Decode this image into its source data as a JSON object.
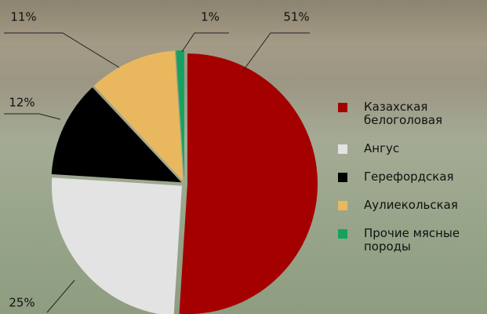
{
  "chart_data": {
    "type": "pie",
    "categories": [
      "Казахская белоголовая",
      "Ангус",
      "Герефордская",
      "Аулиекольская",
      "Прочие мясные породы"
    ],
    "values": [
      51,
      25,
      12,
      11,
      1
    ],
    "value_labels": [
      "51%",
      "25%",
      "12%",
      "11%",
      "1%"
    ],
    "colors": [
      "#a50000",
      "#e3e3e3",
      "#000000",
      "#e9b85e",
      "#14a35e"
    ],
    "legend": "right"
  }
}
